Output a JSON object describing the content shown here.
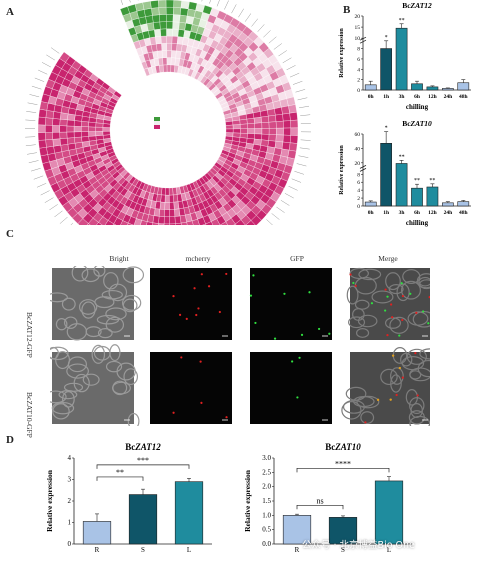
{
  "panels": {
    "A": "A",
    "B": "B",
    "C": "C",
    "D": "D"
  },
  "charts": {
    "zat12_time": {
      "title_prefix": "Bc",
      "title_gene": "ZAT12",
      "ylabel": "Relative expression",
      "xlabel": "chilling",
      "categories": [
        "0h",
        "1h",
        "3h",
        "6h",
        "12h",
        "24h",
        "48h"
      ],
      "values": [
        1.0,
        8.0,
        14.5,
        1.2,
        0.6,
        0.3,
        1.4
      ],
      "errors": [
        0.7,
        1.5,
        2.0,
        0.5,
        0.2,
        0.1,
        0.6
      ],
      "sig": [
        "",
        "*",
        "**",
        "",
        "",
        "",
        ""
      ],
      "yticks": [
        "0",
        "2",
        "4",
        "6",
        "8",
        "10",
        "15",
        "20"
      ]
    },
    "zat10_time": {
      "title_prefix": "Bc",
      "title_gene": "ZAT10",
      "ylabel": "Relative expression",
      "xlabel": "chilling",
      "categories": [
        "0h",
        "1h",
        "3h",
        "6h",
        "12h",
        "24h",
        "48h"
      ],
      "values": [
        1.0,
        48,
        22,
        4.5,
        4.8,
        0.8,
        1.1
      ],
      "errors": [
        0.3,
        15,
        4,
        1.0,
        0.8,
        0.3,
        0.3
      ],
      "sig": [
        "",
        "*",
        "**",
        "**",
        "**",
        "",
        ""
      ],
      "yticks": [
        "0",
        "2",
        "4",
        "6",
        "8",
        "20",
        "40",
        "60"
      ]
    },
    "zat12_tissue": {
      "title_prefix": "Bc",
      "title_gene": "ZAT12",
      "ylabel": "Relative expression",
      "categories": [
        "R",
        "S",
        "L"
      ],
      "values": [
        1.05,
        2.3,
        2.9
      ],
      "errors": [
        0.35,
        0.25,
        0.15
      ],
      "yticks": [
        "0",
        "1",
        "2",
        "3",
        "4"
      ],
      "brackets": [
        "**",
        "***"
      ]
    },
    "zat10_tissue": {
      "title_prefix": "Bc",
      "title_gene": "ZAT10",
      "ylabel": "Relative expression",
      "categories": [
        "R",
        "S",
        "L"
      ],
      "values": [
        1.0,
        0.93,
        2.2
      ],
      "errors": [
        0.04,
        0.05,
        0.15
      ],
      "yticks": [
        "0.0",
        "0.5",
        "1.0",
        "1.5",
        "2.0",
        "2.5",
        "3.0"
      ],
      "brackets": [
        "ns",
        "****"
      ]
    }
  },
  "micro": {
    "columns": [
      "Bright",
      "mcherry",
      "GFP",
      "Merge"
    ],
    "rows": [
      "BcZAT12-GFP",
      "BcZAT10-GFP"
    ]
  },
  "watermark": "公众号 · 北京博益Bio One",
  "colors": {
    "heat_high": "#c8246e",
    "heat_mid": "#f3c9dc",
    "heat_low": "#3d9a3a",
    "bar_light": "#a9c3e6",
    "bar_dark": "#0f5568",
    "bar_teal": "#1f8c9e"
  }
}
